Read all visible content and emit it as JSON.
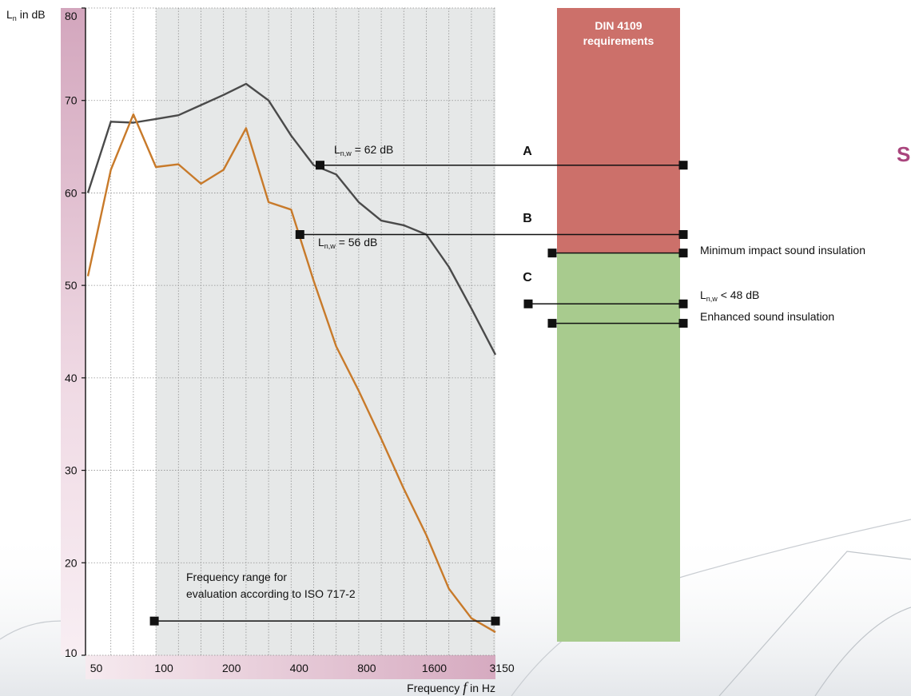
{
  "chart_data": {
    "type": "line",
    "ylabel_main": "L",
    "ylabel_sub": "n",
    "ylabel_rest": " in dB",
    "xlabel_prefix": "Frequency ",
    "xlabel_var": "f",
    "xlabel_suffix": " in Hz",
    "ylim": [
      10,
      80
    ],
    "y_ticks": [
      10,
      20,
      30,
      40,
      50,
      60,
      70,
      80
    ],
    "x_ticks": [
      50,
      100,
      200,
      400,
      800,
      1600,
      3150
    ],
    "x_bands": [
      50,
      63,
      80,
      100,
      125,
      160,
      200,
      250,
      315,
      400,
      500,
      630,
      800,
      1000,
      1250,
      1600,
      2000,
      2500,
      3150,
      4000
    ],
    "series": [
      {
        "color": "#4a4a4a",
        "values": [
          60,
          67.7,
          67.6,
          68,
          68.4,
          69.5,
          70.6,
          71.8,
          70,
          66.2,
          63,
          62,
          59,
          57,
          56.5,
          55.5,
          52,
          47.5,
          42.5
        ]
      },
      {
        "color": "#c87a2a",
        "values": [
          51,
          62.5,
          68.5,
          62.8,
          63.1,
          61,
          62.5,
          67,
          59,
          58.2,
          50.5,
          43.4,
          38.6,
          33.4,
          28,
          23,
          17.2,
          14,
          12.5
        ]
      }
    ],
    "evaluation_range": {
      "from_band": 100,
      "to_band": 3150,
      "level": 13.7,
      "label_line1": "Frequency range for",
      "label_line2": "evaluation according to ISO 717-2"
    },
    "bar": {
      "title_line1": "DIN 4109",
      "title_line2": "requirements",
      "red_color": "#cc706a",
      "green_color": "#a8cb8e",
      "boundary_db": 53.5
    },
    "markers": [
      {
        "letter": "A",
        "db": 63,
        "start_band": 500,
        "label_main": "L",
        "label_sub": "n,w",
        "label_rest": " = 62 dB"
      },
      {
        "letter": "B",
        "db": 55.5,
        "start_band": 400,
        "label_main": "L",
        "label_sub": "n,w",
        "label_rest": " = 56 dB"
      },
      {
        "letter": "C",
        "db": 48,
        "label_main": "L",
        "label_sub": "n,w",
        "label_rest": " < 48 dB"
      }
    ],
    "thresholds": [
      {
        "db": 53.5,
        "label": "Minimum impact sound insulation"
      },
      {
        "db": 45.9,
        "label": "Enhanced sound insulation"
      }
    ],
    "edge_letter": "S"
  }
}
